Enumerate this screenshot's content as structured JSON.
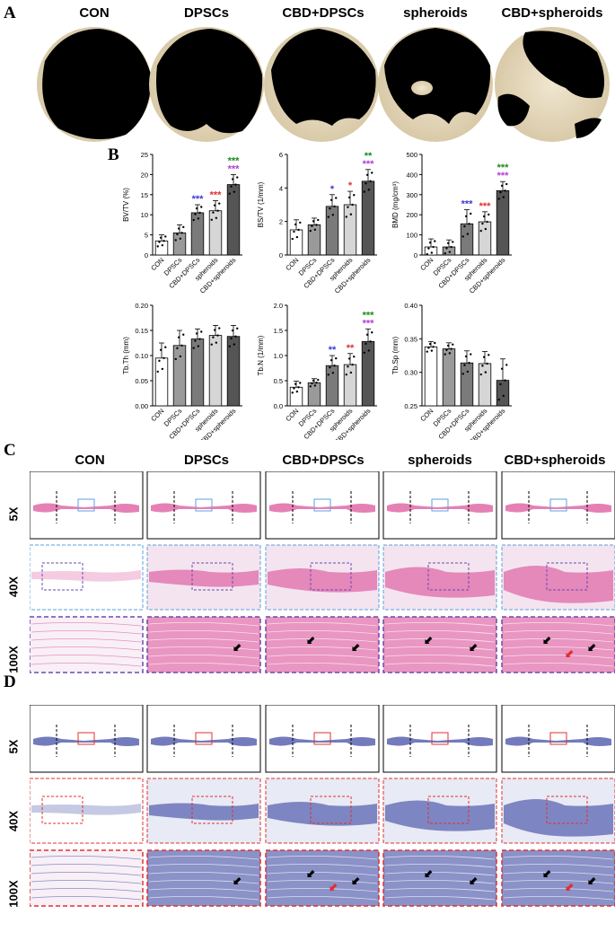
{
  "panels": {
    "A": "A",
    "B": "B",
    "C": "C",
    "D": "D"
  },
  "groups": [
    "CON",
    "DPSCs",
    "CBD+DPSCs",
    "spheroids",
    "CBD+spheroids"
  ],
  "magnifications": [
    "5X",
    "40X",
    "100X"
  ],
  "colors": {
    "bar_fills": [
      "#ffffff",
      "#9a9a9a",
      "#7a7a7a",
      "#d6d6d6",
      "#555555"
    ],
    "sig_blue": "#3a3ad6",
    "sig_red": "#e03030",
    "sig_green": "#1a8a1a",
    "sig_purple": "#b040d0",
    "he_pink": "#e06aa8",
    "masson_blue": "#5a64b0",
    "box_blue": "#5aa0e0",
    "box_purple": "#6a4ab0",
    "box_red": "#e03030"
  },
  "chart_data": [
    {
      "type": "bar",
      "ylabel": "BV/TV (%)",
      "ylim": [
        0,
        25
      ],
      "yticks": [
        0,
        5,
        10,
        15,
        20,
        25
      ],
      "categories": [
        "CON",
        "DPSCs",
        "CBD+DPSCs",
        "spheroids",
        "CBD+spheroids"
      ],
      "values": [
        3.5,
        5.5,
        10.5,
        11,
        17.5
      ],
      "errors": [
        1.5,
        2,
        2,
        2.5,
        2.5
      ],
      "significance": [
        null,
        null,
        [
          {
            "text": "***",
            "color": "blue"
          }
        ],
        [
          {
            "text": "***",
            "color": "red"
          }
        ],
        [
          {
            "text": "***",
            "color": "green"
          },
          {
            "text": "***",
            "color": "purple"
          }
        ]
      ]
    },
    {
      "type": "bar",
      "ylabel": "BS/TV (1/mm)",
      "ylim": [
        0,
        6
      ],
      "yticks": [
        0,
        2,
        4,
        6
      ],
      "categories": [
        "CON",
        "DPSCs",
        "CBD+DPSCs",
        "spheroids",
        "CBD+spheroids"
      ],
      "values": [
        1.5,
        1.8,
        2.9,
        3.0,
        4.4
      ],
      "errors": [
        0.6,
        0.4,
        0.7,
        0.8,
        0.7
      ],
      "significance": [
        null,
        null,
        [
          {
            "text": "*",
            "color": "blue"
          }
        ],
        [
          {
            "text": "*",
            "color": "red"
          }
        ],
        [
          {
            "text": "**",
            "color": "green"
          },
          {
            "text": "***",
            "color": "purple"
          }
        ]
      ]
    },
    {
      "type": "bar",
      "ylabel": "BMD (mg/cm³)",
      "ylim": [
        0,
        500
      ],
      "yticks": [
        0,
        100,
        200,
        300,
        400,
        500
      ],
      "categories": [
        "CON",
        "DPSCs",
        "CBD+DPSCs",
        "spheroids",
        "CBD+spheroids"
      ],
      "values": [
        40,
        40,
        155,
        165,
        320
      ],
      "errors": [
        40,
        35,
        70,
        50,
        45
      ],
      "significance": [
        null,
        null,
        [
          {
            "text": "***",
            "color": "blue"
          }
        ],
        [
          {
            "text": "***",
            "color": "red"
          }
        ],
        [
          {
            "text": "***",
            "color": "green"
          },
          {
            "text": "***",
            "color": "purple"
          }
        ]
      ]
    },
    {
      "type": "bar",
      "ylabel": "Tb.Th (mm)",
      "ylim": [
        0,
        0.2
      ],
      "yticks": [
        0.0,
        0.05,
        0.1,
        0.15,
        0.2
      ],
      "categories": [
        "CON",
        "DPSCs",
        "CBD+DPSCs",
        "spheroids",
        "CBD+spheroids"
      ],
      "values": [
        0.095,
        0.12,
        0.133,
        0.14,
        0.138
      ],
      "errors": [
        0.03,
        0.03,
        0.02,
        0.02,
        0.022
      ],
      "significance": [
        null,
        null,
        null,
        null,
        null
      ]
    },
    {
      "type": "bar",
      "ylabel": "Tb.N (1/mm)",
      "ylim": [
        0,
        2.0
      ],
      "yticks": [
        0.0,
        0.5,
        1.0,
        1.5,
        2.0
      ],
      "categories": [
        "CON",
        "DPSCs",
        "CBD+DPSCs",
        "spheroids",
        "CBD+spheroids"
      ],
      "values": [
        0.37,
        0.46,
        0.8,
        0.82,
        1.28
      ],
      "errors": [
        0.12,
        0.08,
        0.2,
        0.22,
        0.25
      ],
      "significance": [
        null,
        null,
        [
          {
            "text": "**",
            "color": "blue"
          }
        ],
        [
          {
            "text": "**",
            "color": "red"
          }
        ],
        [
          {
            "text": "***",
            "color": "green"
          },
          {
            "text": "***",
            "color": "purple"
          }
        ]
      ]
    },
    {
      "type": "bar",
      "ylabel": "Tb.Sp (mm)",
      "ylim": [
        0.25,
        0.4
      ],
      "yticks": [
        0.25,
        0.3,
        0.35,
        0.4
      ],
      "categories": [
        "CON",
        "DPSCs",
        "CBD+DPSCs",
        "spheroids",
        "CBD+spheroids"
      ],
      "values": [
        0.338,
        0.335,
        0.314,
        0.313,
        0.288
      ],
      "errors": [
        0.008,
        0.009,
        0.018,
        0.018,
        0.032
      ],
      "significance": [
        null,
        null,
        null,
        null,
        null
      ]
    }
  ]
}
